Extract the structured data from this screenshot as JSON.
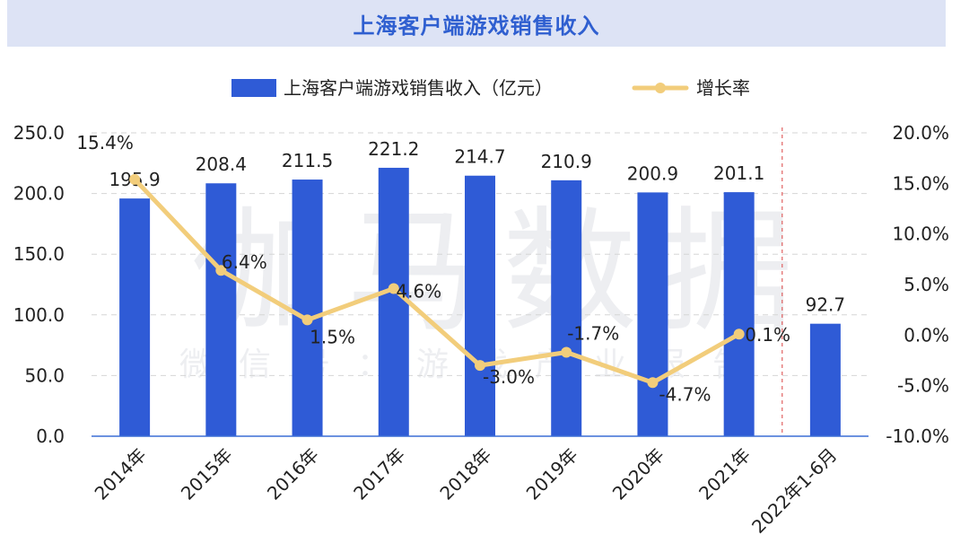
{
  "chart_data": {
    "type": "bar+line",
    "title": "上海客户端游戏销售收入",
    "categories": [
      "2014年",
      "2015年",
      "2016年",
      "2017年",
      "2018年",
      "2019年",
      "2020年",
      "2021年",
      "2022年1-6月"
    ],
    "series": [
      {
        "name": "上海客户端游戏销售收入（亿元）",
        "type": "bar",
        "axis": "left",
        "values": [
          195.9,
          208.4,
          211.5,
          221.2,
          214.7,
          210.9,
          200.9,
          201.1,
          92.7
        ],
        "labels": [
          "195.9",
          "208.4",
          "211.5",
          "221.2",
          "214.7",
          "210.9",
          "200.9",
          "201.1",
          "92.7"
        ]
      },
      {
        "name": "增长率",
        "type": "line",
        "axis": "right",
        "values": [
          15.4,
          6.4,
          1.5,
          4.6,
          -3.0,
          -1.7,
          -4.7,
          0.1,
          null
        ],
        "labels": [
          "15.4%",
          "6.4%",
          "1.5%",
          "4.6%",
          "-3.0%",
          "-1.7%",
          "-4.7%",
          "0.1%",
          ""
        ]
      }
    ],
    "left_axis": {
      "min": 0,
      "max": 250,
      "ticks": [
        "0.0",
        "50.0",
        "100.0",
        "150.0",
        "200.0",
        "250.0"
      ]
    },
    "right_axis": {
      "min": -10,
      "max": 20,
      "ticks": [
        "-10.0%",
        "-5.0%",
        "0.0%",
        "5.0%",
        "10.0%",
        "15.0%",
        "20.0%"
      ]
    },
    "colors": {
      "bar": "#2f5bd6",
      "line": "#f2cd7b",
      "title_bg": "#dde3f5",
      "title_text": "#2f5fd0",
      "divider": "#e06060"
    },
    "watermark": {
      "main": "伽马数据",
      "sub": "微信号：游戏产业报告"
    }
  }
}
